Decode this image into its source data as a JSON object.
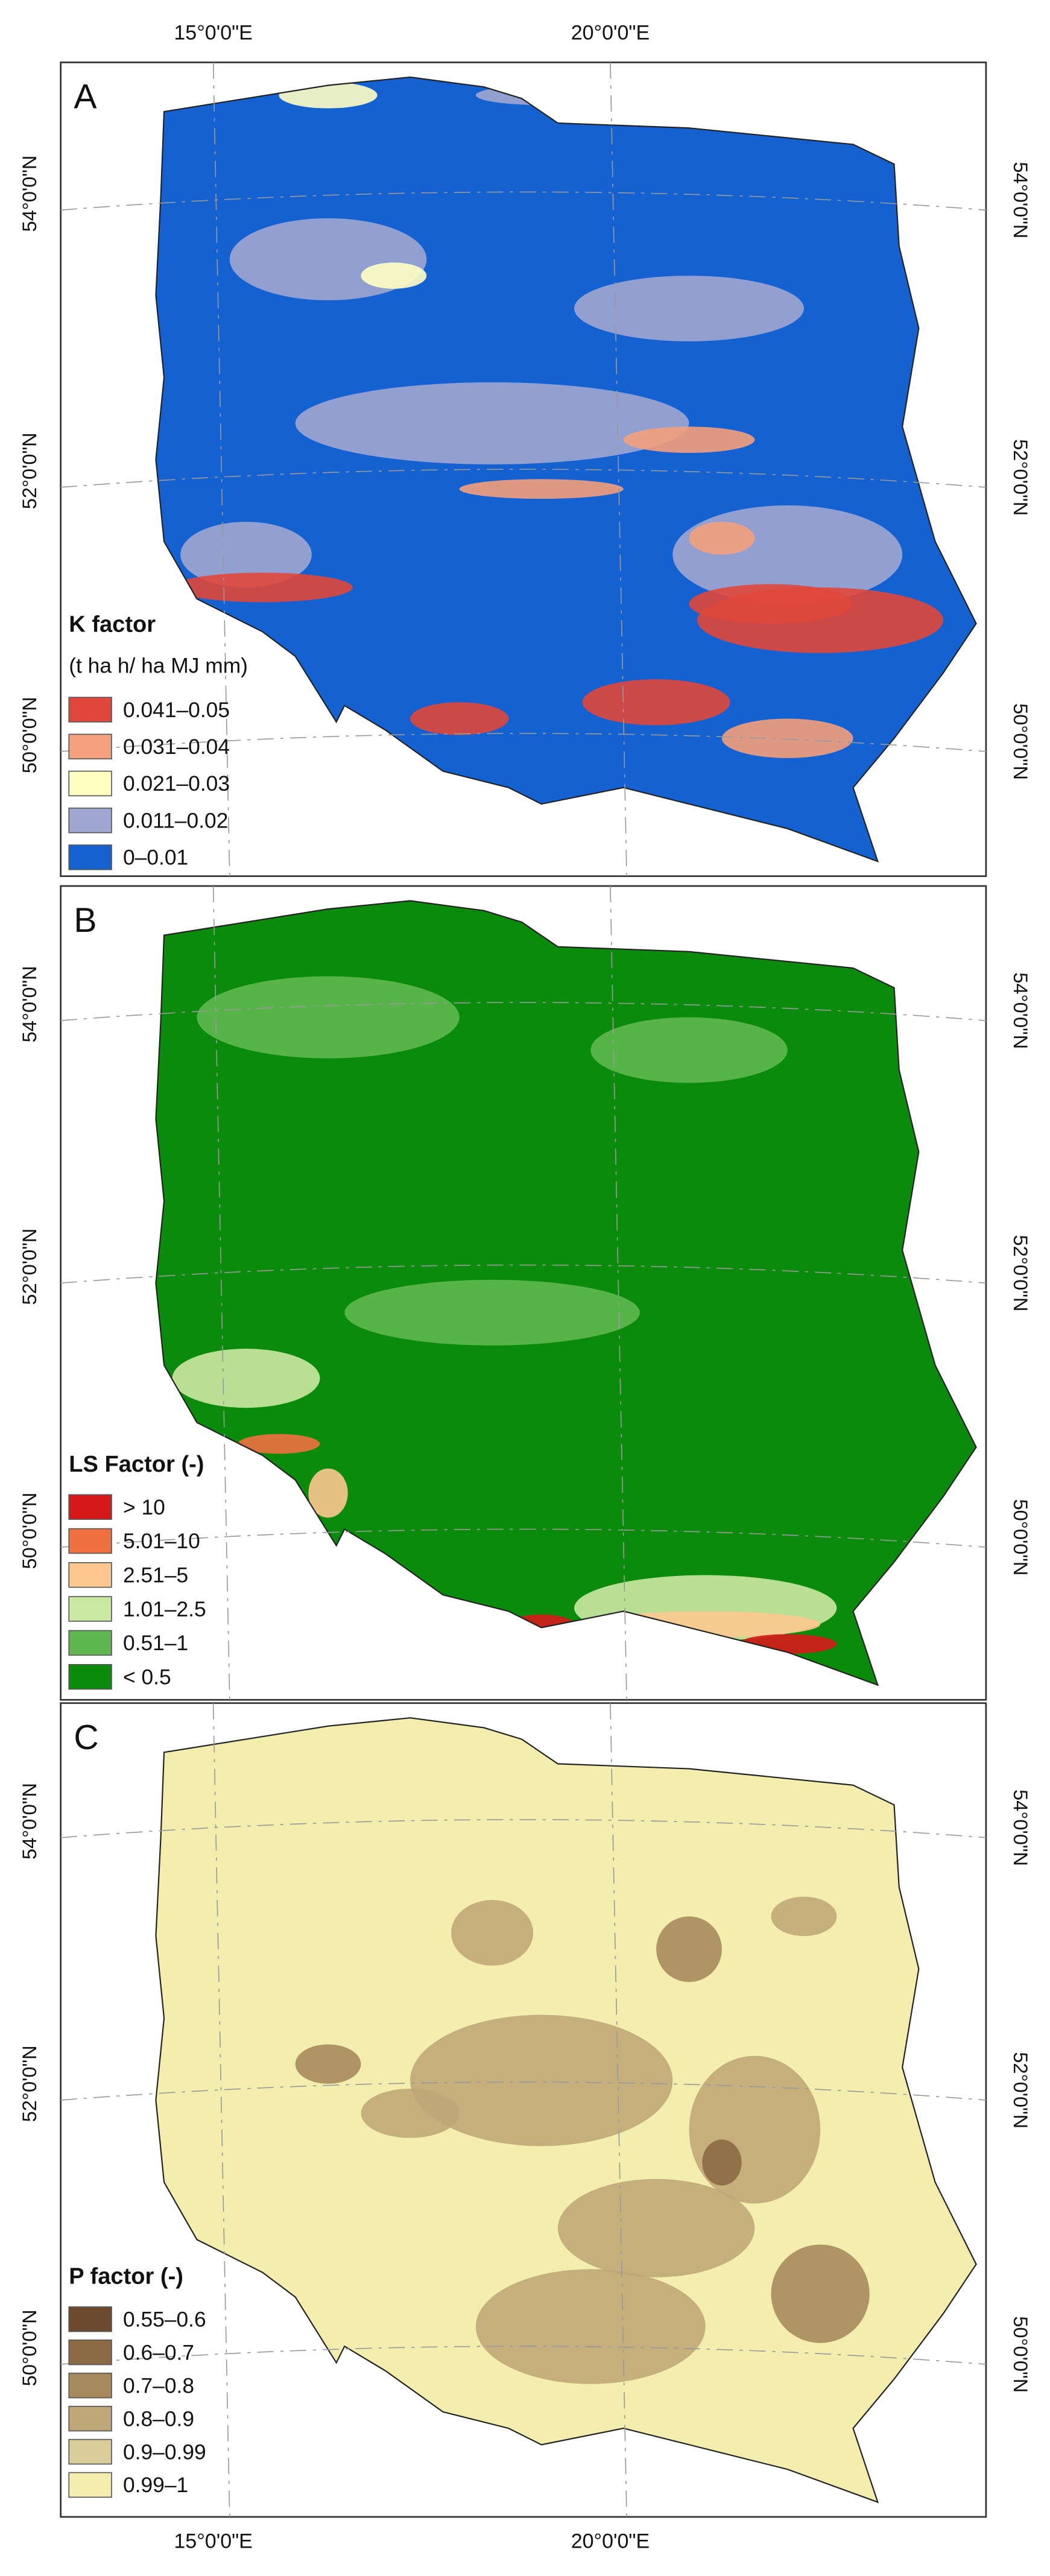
{
  "lon_labels": [
    "15°0'0\"E",
    "20°0'0\"E"
  ],
  "lat_labels": [
    "54°0'0\"N",
    "52°0'0\"N",
    "50°0'0\"N"
  ],
  "panels": [
    {
      "letter": "A",
      "legend_title": "K factor",
      "legend_subtitle": "(t ha h/ ha MJ mm)",
      "legend": [
        {
          "label": "0.041–0.05",
          "color": "#e0473a"
        },
        {
          "label": "0.031–0.04",
          "color": "#f4a07c"
        },
        {
          "label": "0.021–0.03",
          "color": "#ffffc2"
        },
        {
          "label": "0.011–0.02",
          "color": "#9fa7d0"
        },
        {
          "label": "0–0.01",
          "color": "#1461d2"
        }
      ]
    },
    {
      "letter": "B",
      "legend_title": "LS Factor (-)",
      "legend": [
        {
          "label": "> 10",
          "color": "#d71818"
        },
        {
          "label": "5.01–10",
          "color": "#f07040"
        },
        {
          "label": "2.51–5",
          "color": "#fdc890"
        },
        {
          "label": "1.01–2.5",
          "color": "#cbe8a2"
        },
        {
          "label": "0.51–1",
          "color": "#5fb84f"
        },
        {
          "label": "< 0.5",
          "color": "#0b8b0b"
        }
      ]
    },
    {
      "letter": "C",
      "legend_title": "P factor (-)",
      "legend": [
        {
          "label": "0.55–0.6",
          "color": "#6d4a2e"
        },
        {
          "label": "0.6–0.7",
          "color": "#8b6a45"
        },
        {
          "label": "0.7–0.8",
          "color": "#a7895e"
        },
        {
          "label": "0.8–0.9",
          "color": "#bfa778"
        },
        {
          "label": "0.9–0.99",
          "color": "#d8cc98"
        },
        {
          "label": "0.99–1",
          "color": "#f3eeae"
        }
      ]
    }
  ]
}
